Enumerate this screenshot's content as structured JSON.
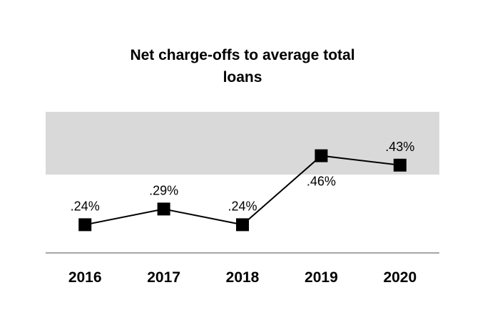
{
  "chart_data": {
    "type": "line",
    "title_lines": [
      "Net charge-offs to average total",
      "loans"
    ],
    "categories": [
      "2016",
      "2017",
      "2018",
      "2019",
      "2020"
    ],
    "values": [
      0.24,
      0.29,
      0.24,
      0.46,
      0.43
    ],
    "data_labels": [
      ".24%",
      ".29%",
      ".24%",
      ".46%",
      ".43%"
    ],
    "data_label_positions": [
      "above",
      "above",
      "above",
      "below",
      "above"
    ],
    "shaded_range": [
      0.4,
      0.6
    ],
    "ylim": [
      0.15,
      0.6
    ],
    "xlabel": "",
    "ylabel": "",
    "grid": false,
    "legend": "none",
    "marker": "square",
    "colors": {
      "line": "#000000",
      "marker": "#000000",
      "band": "#d9d9d9",
      "axis": "#a6a6a6"
    }
  }
}
